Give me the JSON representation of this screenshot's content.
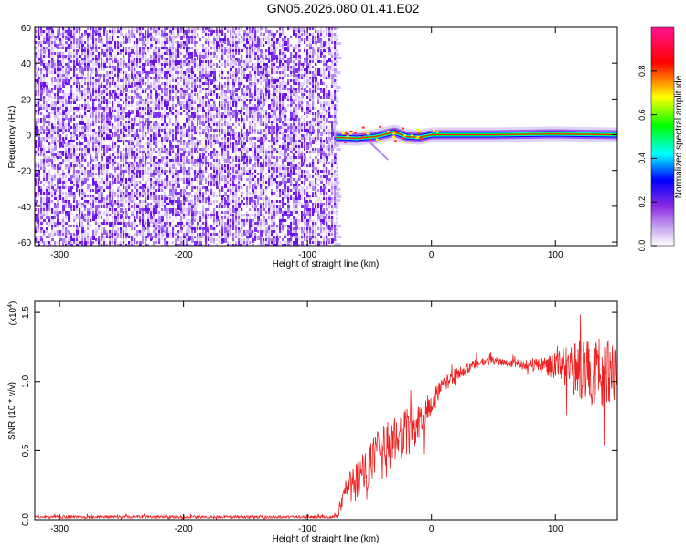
{
  "figure": {
    "title": "GN05.2026.080.01.41.E02"
  },
  "chart_data": [
    {
      "type": "heatmap",
      "title": "GN05.2026.080.01.41.E02",
      "xlabel": "Height of straight line (km)",
      "ylabel": "Frequency (Hz)",
      "xlim": [
        -320,
        150
      ],
      "ylim": [
        -62,
        60
      ],
      "xticks": [
        -300,
        -200,
        -100,
        0,
        100
      ],
      "yticks": [
        -60,
        -40,
        -20,
        0,
        20,
        40,
        60
      ],
      "noise_region_x": [
        -320,
        -77
      ],
      "signal_line": [
        {
          "x": -77,
          "y": -1.5
        },
        {
          "x": -60,
          "y": -2
        },
        {
          "x": -45,
          "y": -1
        },
        {
          "x": -30,
          "y": 1.5
        },
        {
          "x": -20,
          "y": -1
        },
        {
          "x": -10,
          "y": -1.5
        },
        {
          "x": 0,
          "y": 0
        },
        {
          "x": 50,
          "y": 0
        },
        {
          "x": 100,
          "y": 0.5
        },
        {
          "x": 150,
          "y": 0
        }
      ],
      "colorbar": {
        "label": "Normalized spectral amplitude",
        "range": [
          0,
          1
        ],
        "ticks": [
          0.0,
          0.2,
          0.4,
          0.6,
          0.8
        ],
        "colors": [
          "#ffffff",
          "#8a2be2",
          "#0000ff",
          "#00ffff",
          "#00ff00",
          "#ffff00",
          "#ff0000",
          "#ff1493"
        ]
      }
    },
    {
      "type": "line",
      "xlabel": "Height of straight line (km)",
      "ylabel": "SNR (10 * v/v)",
      "scale_note": "(x10",
      "scale_exp": "4",
      "scale_close": ")",
      "xlim": [
        -320,
        150
      ],
      "ylim": [
        0,
        1.58
      ],
      "xticks": [
        -300,
        -200,
        -100,
        0,
        100
      ],
      "yticks": [
        0.0,
        0.5,
        1.0,
        1.5
      ],
      "ytick_labels": [
        "0.0",
        "0.5",
        "1.0",
        "1.5"
      ],
      "color": "#ee2222",
      "series": [
        {
          "x": [
            -320,
            -100,
            -80,
            -75,
            -70,
            -60,
            -50,
            -40,
            -30,
            -20,
            -10,
            0,
            10,
            20,
            30,
            40,
            50,
            60,
            70,
            80,
            90,
            100,
            110,
            120,
            130,
            140,
            150
          ],
          "y": [
            0.02,
            0.02,
            0.02,
            0.05,
            0.2,
            0.28,
            0.38,
            0.48,
            0.55,
            0.62,
            0.7,
            0.85,
            0.97,
            1.05,
            1.1,
            1.14,
            1.15,
            1.14,
            1.12,
            1.12,
            1.12,
            1.11,
            1.1,
            1.08,
            1.07,
            1.06,
            1.06
          ],
          "spread": [
            0.01,
            0.01,
            0.01,
            0.04,
            0.12,
            0.15,
            0.18,
            0.2,
            0.2,
            0.18,
            0.14,
            0.1,
            0.06,
            0.05,
            0.04,
            0.04,
            0.03,
            0.03,
            0.03,
            0.04,
            0.06,
            0.1,
            0.16,
            0.22,
            0.25,
            0.25,
            0.22
          ]
        }
      ]
    }
  ]
}
